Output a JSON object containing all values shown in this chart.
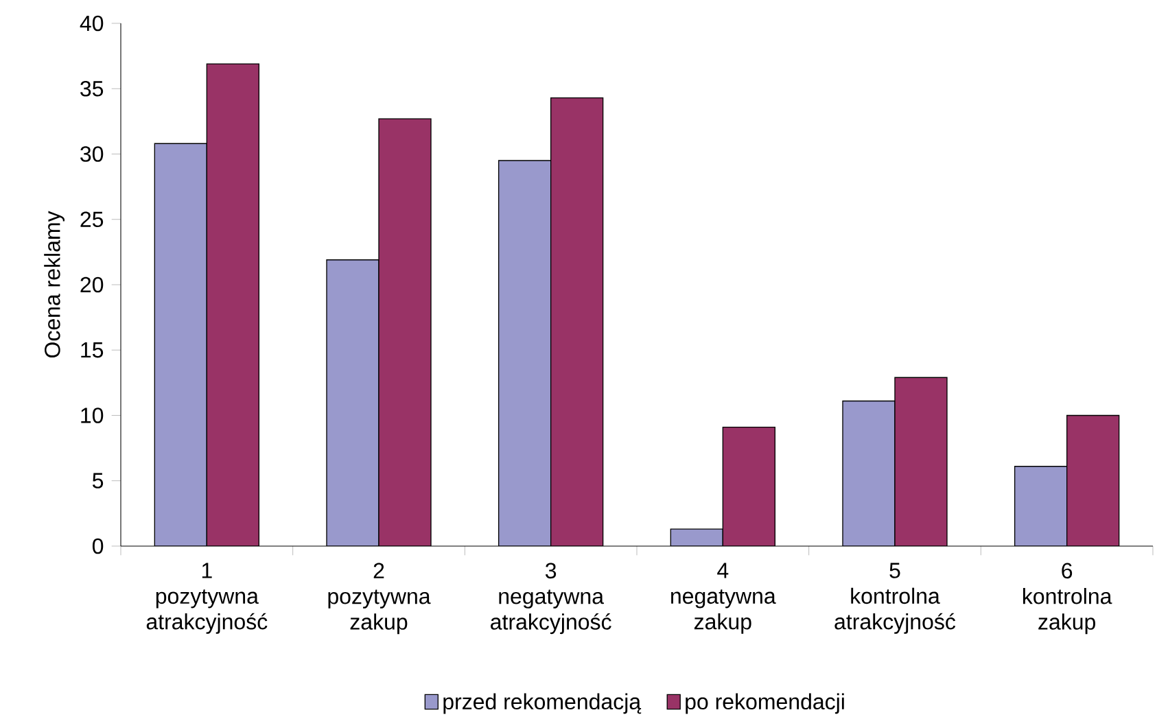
{
  "chart_data": {
    "type": "bar",
    "ylabel": "Ocena reklamy",
    "categories": [
      "1 pozytywna atrakcyjność",
      "2 pozytywna zakup",
      "3 negatywna atrakcyjność",
      "4 negatywna zakup",
      "5 kontrolna atrakcyjność",
      "6 kontrolna zakup"
    ],
    "series": [
      {
        "name": "przed rekomendacją",
        "color": "#9999cc",
        "values": [
          30.8,
          21.9,
          29.5,
          1.3,
          11.1,
          6.1
        ]
      },
      {
        "name": "po rekomendacji",
        "color": "#993366",
        "values": [
          36.9,
          32.7,
          34.3,
          9.1,
          12.9,
          10.0
        ]
      }
    ],
    "ylim": [
      0,
      40
    ],
    "yticks": [
      0,
      5,
      10,
      15,
      20,
      25,
      30,
      35,
      40
    ],
    "grid": false,
    "legend": "bottom"
  }
}
